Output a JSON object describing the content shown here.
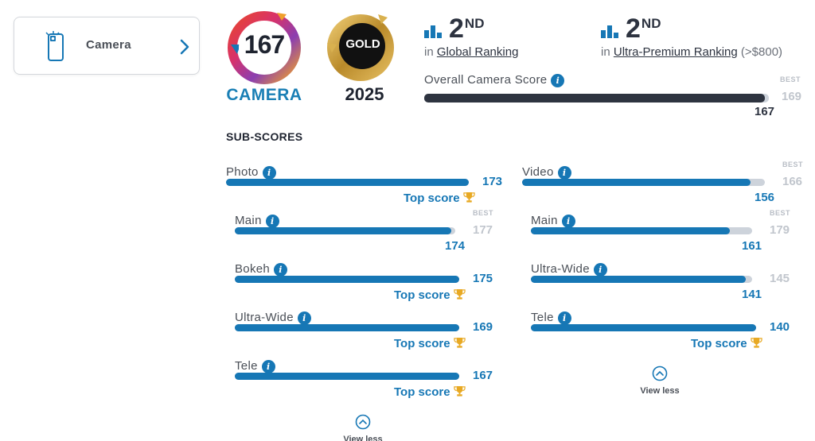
{
  "category_card": {
    "label": "Camera",
    "icon": "camera-phone-icon",
    "chevron": "chevron-right-icon"
  },
  "badge": {
    "score": "167",
    "category": "CAMERA"
  },
  "medal": {
    "label": "GOLD",
    "year": "2025"
  },
  "global_rank": {
    "number": "2",
    "suffix": "ND",
    "prefix": "in",
    "link": "Global Ranking"
  },
  "premium_rank": {
    "number": "2",
    "suffix": "ND",
    "prefix": "in",
    "link": "Ultra-Premium Ranking",
    "note": "(>$800)"
  },
  "overall": {
    "label": "Overall Camera Score",
    "value": "167",
    "best_label": "BEST",
    "best": "169",
    "fraction": 0.988
  },
  "sub_scores_title": "SUB-SCORES",
  "top_score_label": "Top score",
  "view_less_label": "View less",
  "photo": {
    "label": "Photo",
    "value": "173",
    "fraction": 1.0,
    "top": true,
    "items": [
      {
        "label": "Main",
        "value": "174",
        "best": "177",
        "best_label": "BEST",
        "fraction": 0.983,
        "top": false
      },
      {
        "label": "Bokeh",
        "value": "175",
        "fraction": 1.0,
        "top": true
      },
      {
        "label": "Ultra-Wide",
        "value": "169",
        "fraction": 1.0,
        "top": true
      },
      {
        "label": "Tele",
        "value": "167",
        "fraction": 1.0,
        "top": true
      }
    ]
  },
  "video": {
    "label": "Video",
    "value": "156",
    "best": "166",
    "best_label": "BEST",
    "fraction": 0.94,
    "top": false,
    "items": [
      {
        "label": "Main",
        "value": "161",
        "best": "179",
        "best_label": "BEST",
        "fraction": 0.9,
        "top": false
      },
      {
        "label": "Ultra-Wide",
        "value": "141",
        "best": "145",
        "fraction": 0.972,
        "top": false
      },
      {
        "label": "Tele",
        "value": "140",
        "fraction": 1.0,
        "top": true
      }
    ]
  },
  "colors": {
    "accent": "#1677b5",
    "track": "#cdd3db",
    "overall_bar": "#2e3440",
    "gold": "#c9a13a",
    "trophy": "#e8a923"
  }
}
